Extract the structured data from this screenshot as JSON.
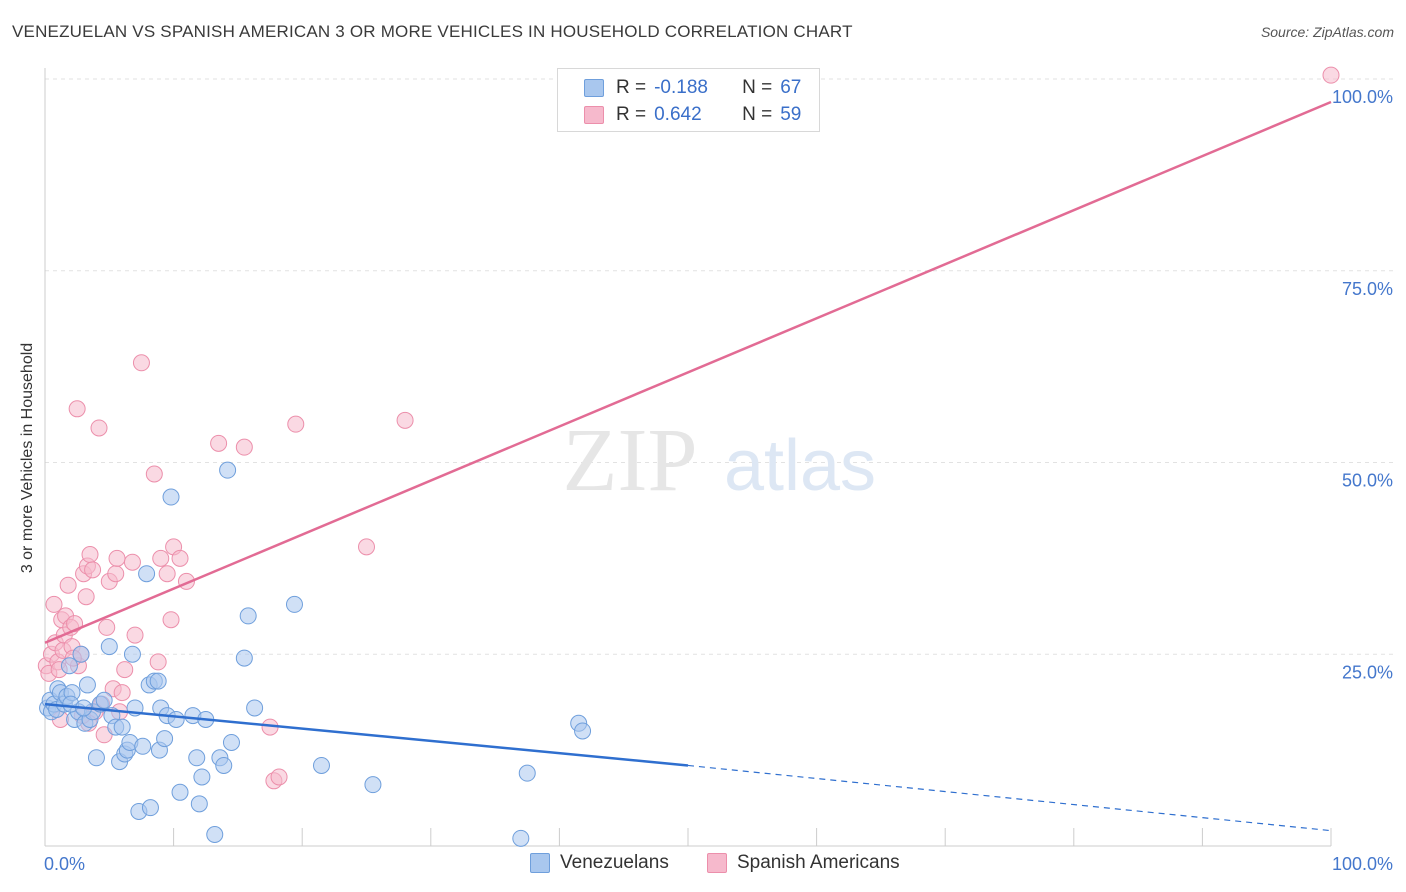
{
  "header": {
    "title": "VENEZUELAN VS SPANISH AMERICAN 3 OR MORE VEHICLES IN HOUSEHOLD CORRELATION CHART",
    "source": "Source: ZipAtlas.com"
  },
  "watermark": {
    "zip": "ZIP",
    "atlas": "atlas"
  },
  "colors": {
    "blue_fill": "#a9c7ee",
    "blue_stroke": "#6f9fdc",
    "blue_line": "#2f6fcf",
    "pink_fill": "#f6b9cc",
    "pink_stroke": "#ec8fab",
    "pink_line": "#e26b94",
    "tick_label": "#4477cc",
    "grid": "#e2e2e2"
  },
  "legend_top": {
    "rows": [
      {
        "r_label": "R =",
        "r_value": "-0.188",
        "n_label": "N =",
        "n_value": "67"
      },
      {
        "r_label": "R =",
        "r_value": "0.642",
        "n_label": "N =",
        "n_value": "59"
      }
    ]
  },
  "legend_bottom": {
    "items": [
      "Venezuelans",
      "Spanish Americans"
    ]
  },
  "chart_data": {
    "type": "scatter",
    "title": "VENEZUELAN VS SPANISH AMERICAN 3 OR MORE VEHICLES IN HOUSEHOLD CORRELATION CHART",
    "xlabel": "",
    "ylabel": "3 or more Vehicles in Household",
    "xlim": [
      0,
      100
    ],
    "ylim": [
      0,
      100
    ],
    "x_tick_labels": [
      "0.0%",
      "100.0%"
    ],
    "y_tick_labels": [
      "25.0%",
      "50.0%",
      "75.0%",
      "100.0%"
    ],
    "y_ticks": [
      25,
      50,
      75,
      100
    ],
    "grid": true,
    "legend_position": "bottom",
    "series": [
      {
        "name": "Venezuelans",
        "r": -0.188,
        "n": 67,
        "trend": {
          "x0": 0,
          "y0": 18.5,
          "x1": 50,
          "y1": 10.5,
          "dashed_to_x": 100,
          "dashed_to_y": 2.0
        },
        "points": [
          [
            0.2,
            18.0
          ],
          [
            0.4,
            19.0
          ],
          [
            0.5,
            17.5
          ],
          [
            0.7,
            18.5
          ],
          [
            0.9,
            17.8
          ],
          [
            1.0,
            20.5
          ],
          [
            1.2,
            20.0
          ],
          [
            1.5,
            18.5
          ],
          [
            1.7,
            19.5
          ],
          [
            1.9,
            23.5
          ],
          [
            2.1,
            20.0
          ],
          [
            2.3,
            16.5
          ],
          [
            2.6,
            17.5
          ],
          [
            2.8,
            25.0
          ],
          [
            3.1,
            16.0
          ],
          [
            3.3,
            21.0
          ],
          [
            3.5,
            16.5
          ],
          [
            3.7,
            17.5
          ],
          [
            4.0,
            11.5
          ],
          [
            4.3,
            18.5
          ],
          [
            4.6,
            19.0
          ],
          [
            5.0,
            26.0
          ],
          [
            5.2,
            17.0
          ],
          [
            5.5,
            15.5
          ],
          [
            5.8,
            11.0
          ],
          [
            6.0,
            15.5
          ],
          [
            6.2,
            12.0
          ],
          [
            6.4,
            12.5
          ],
          [
            6.6,
            13.5
          ],
          [
            6.8,
            25.0
          ],
          [
            7.0,
            18.0
          ],
          [
            7.3,
            4.5
          ],
          [
            7.6,
            13.0
          ],
          [
            7.9,
            35.5
          ],
          [
            8.1,
            21.0
          ],
          [
            8.2,
            5.0
          ],
          [
            8.5,
            21.5
          ],
          [
            8.8,
            21.5
          ],
          [
            8.9,
            12.5
          ],
          [
            9.0,
            18.0
          ],
          [
            9.3,
            14.0
          ],
          [
            9.5,
            17.0
          ],
          [
            9.8,
            45.5
          ],
          [
            10.2,
            16.5
          ],
          [
            10.5,
            7.0
          ],
          [
            11.5,
            17.0
          ],
          [
            11.8,
            11.5
          ],
          [
            12.0,
            5.5
          ],
          [
            12.2,
            9.0
          ],
          [
            12.5,
            16.5
          ],
          [
            13.2,
            1.5
          ],
          [
            13.6,
            11.5
          ],
          [
            13.9,
            10.5
          ],
          [
            14.2,
            49.0
          ],
          [
            14.5,
            13.5
          ],
          [
            15.5,
            24.5
          ],
          [
            15.8,
            30.0
          ],
          [
            16.3,
            18.0
          ],
          [
            19.4,
            31.5
          ],
          [
            21.5,
            10.5
          ],
          [
            25.5,
            8.0
          ],
          [
            37.0,
            1.0
          ],
          [
            37.5,
            9.5
          ],
          [
            41.5,
            16.0
          ],
          [
            41.8,
            15.0
          ],
          [
            2.0,
            18.5
          ],
          [
            3.0,
            18.0
          ]
        ]
      },
      {
        "name": "Spanish Americans",
        "r": 0.642,
        "n": 59,
        "trend": {
          "x0": 0,
          "y0": 26.5,
          "x1": 100,
          "y1": 97.0
        },
        "points": [
          [
            0.1,
            23.5
          ],
          [
            0.3,
            22.5
          ],
          [
            0.5,
            25.0
          ],
          [
            0.7,
            31.5
          ],
          [
            0.8,
            26.5
          ],
          [
            1.0,
            24.0
          ],
          [
            1.1,
            23.0
          ],
          [
            1.3,
            29.5
          ],
          [
            1.4,
            25.5
          ],
          [
            1.5,
            27.5
          ],
          [
            1.6,
            30.0
          ],
          [
            1.8,
            34.0
          ],
          [
            2.0,
            28.5
          ],
          [
            2.1,
            26.0
          ],
          [
            2.3,
            29.0
          ],
          [
            2.5,
            57.0
          ],
          [
            2.6,
            23.5
          ],
          [
            2.8,
            25.0
          ],
          [
            3.0,
            35.5
          ],
          [
            3.2,
            32.5
          ],
          [
            3.3,
            36.5
          ],
          [
            3.5,
            38.0
          ],
          [
            3.7,
            36.0
          ],
          [
            3.9,
            17.5
          ],
          [
            4.2,
            54.5
          ],
          [
            4.4,
            18.5
          ],
          [
            4.6,
            14.5
          ],
          [
            4.8,
            28.5
          ],
          [
            5.0,
            34.5
          ],
          [
            5.3,
            20.5
          ],
          [
            5.5,
            35.5
          ],
          [
            5.8,
            17.5
          ],
          [
            5.6,
            37.5
          ],
          [
            6.0,
            20.0
          ],
          [
            6.2,
            23.0
          ],
          [
            6.8,
            37.0
          ],
          [
            7.0,
            27.5
          ],
          [
            7.5,
            63.0
          ],
          [
            8.5,
            48.5
          ],
          [
            8.8,
            24.0
          ],
          [
            9.0,
            37.5
          ],
          [
            9.5,
            35.5
          ],
          [
            9.8,
            29.5
          ],
          [
            10.0,
            39.0
          ],
          [
            10.5,
            37.5
          ],
          [
            11.0,
            34.5
          ],
          [
            13.5,
            52.5
          ],
          [
            15.5,
            52.0
          ],
          [
            17.5,
            15.5
          ],
          [
            17.8,
            8.5
          ],
          [
            18.2,
            9.0
          ],
          [
            19.5,
            55.0
          ],
          [
            25.0,
            39.0
          ],
          [
            28.0,
            55.5
          ],
          [
            100.0,
            100.5
          ],
          [
            2.2,
            24.5
          ],
          [
            1.2,
            16.5
          ],
          [
            3.4,
            16.0
          ],
          [
            2.9,
            17.0
          ]
        ]
      }
    ]
  }
}
